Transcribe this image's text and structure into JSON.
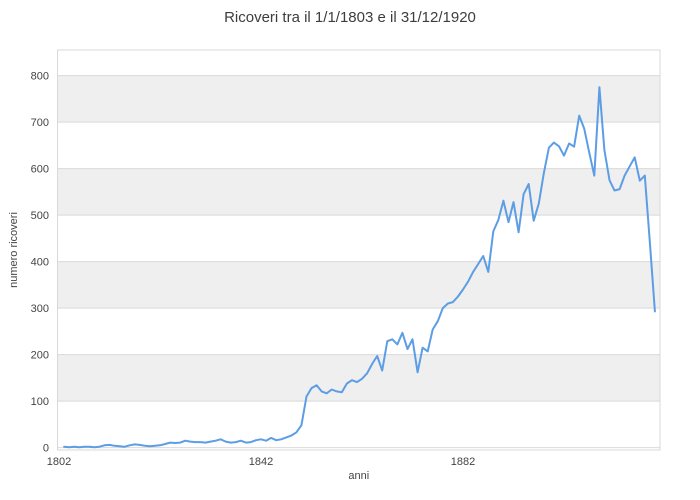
{
  "chart_data": {
    "type": "line",
    "title": "Ricoveri tra il 1/1/1803 e il 31/12/1920",
    "xlabel": "anni",
    "ylabel": "numero ricoveri",
    "legend": "none",
    "grid": "horizontal",
    "x_ticks": [
      1802,
      1842,
      1882
    ],
    "y_ticks": [
      0,
      100,
      200,
      300,
      400,
      500,
      600,
      700,
      800
    ],
    "x_range": [
      1801.7,
      1921
    ],
    "y_range": [
      -5,
      855
    ],
    "background_bands": [
      [
        100,
        200
      ],
      [
        300,
        400
      ],
      [
        500,
        600
      ],
      [
        700,
        800
      ]
    ],
    "colors": {
      "line": "#5c9de5",
      "band": "#efefef",
      "grid": "#d9d9d9",
      "border": "#d9d9d9",
      "text": "#444444",
      "title_text": "#3d3d3d",
      "background": "#ffffff"
    },
    "series": [
      {
        "name": "ricoveri",
        "x": [
          1803,
          1804,
          1805,
          1806,
          1807,
          1808,
          1809,
          1810,
          1811,
          1812,
          1813,
          1814,
          1815,
          1816,
          1817,
          1818,
          1819,
          1820,
          1821,
          1822,
          1823,
          1824,
          1825,
          1826,
          1827,
          1828,
          1829,
          1830,
          1831,
          1832,
          1833,
          1834,
          1835,
          1836,
          1837,
          1838,
          1839,
          1840,
          1841,
          1842,
          1843,
          1844,
          1845,
          1846,
          1847,
          1848,
          1849,
          1850,
          1851,
          1852,
          1853,
          1854,
          1855,
          1856,
          1857,
          1858,
          1859,
          1860,
          1861,
          1862,
          1863,
          1864,
          1865,
          1866,
          1867,
          1868,
          1869,
          1870,
          1871,
          1872,
          1873,
          1874,
          1875,
          1876,
          1877,
          1878,
          1879,
          1880,
          1881,
          1882,
          1883,
          1884,
          1885,
          1886,
          1887,
          1888,
          1889,
          1890,
          1891,
          1892,
          1893,
          1894,
          1895,
          1896,
          1897,
          1898,
          1899,
          1900,
          1901,
          1902,
          1903,
          1904,
          1905,
          1906,
          1907,
          1908,
          1909,
          1910,
          1911,
          1912,
          1913,
          1914,
          1915,
          1916,
          1917,
          1918,
          1919,
          1920
        ],
        "values": [
          2,
          1,
          2,
          1,
          2,
          2,
          1,
          2,
          5,
          6,
          4,
          3,
          2,
          5,
          7,
          6,
          4,
          3,
          4,
          5,
          8,
          11,
          10,
          11,
          15,
          13,
          12,
          12,
          11,
          13,
          15,
          18,
          13,
          11,
          12,
          15,
          11,
          12,
          16,
          18,
          15,
          21,
          16,
          18,
          22,
          26,
          33,
          48,
          110,
          128,
          134,
          121,
          117,
          125,
          121,
          119,
          138,
          145,
          141,
          148,
          160,
          180,
          197,
          166,
          229,
          233,
          222,
          247,
          212,
          233,
          162,
          215,
          207,
          254,
          272,
          300,
          310,
          313,
          325,
          340,
          357,
          378,
          395,
          412,
          378,
          465,
          490,
          531,
          485,
          528,
          463,
          545,
          567,
          488,
          525,
          590,
          645,
          656,
          648,
          628,
          654,
          647,
          714,
          686,
          634,
          585,
          775,
          640,
          575,
          553,
          556,
          585,
          605,
          624,
          574,
          585,
          440,
          293
        ]
      }
    ]
  }
}
